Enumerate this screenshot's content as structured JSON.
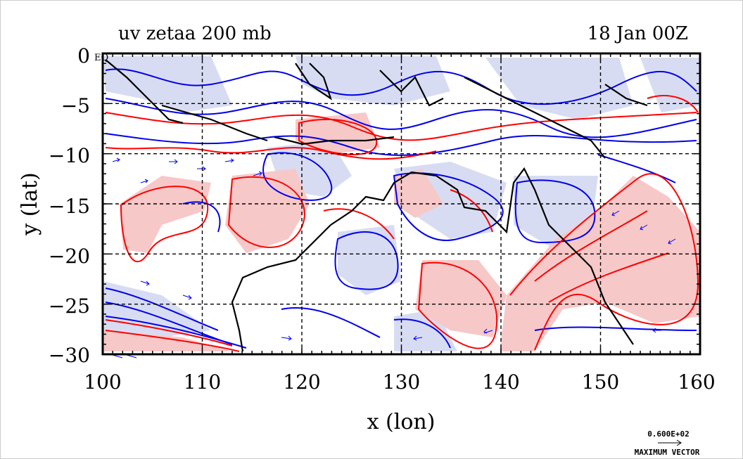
{
  "plot": {
    "title_left": "uv zetaa 200 mb",
    "title_right": "18 Jan 00Z",
    "xlabel": "x (lon)",
    "ylabel": "y (lat)",
    "equator_label": "EQ",
    "x_ticks": [
      "100",
      "110",
      "120",
      "130",
      "140",
      "150",
      "160"
    ],
    "y_ticks": [
      "0",
      "−5",
      "−10",
      "−15",
      "−20",
      "−25",
      "−30"
    ],
    "vector_key_value": "0.600E+02",
    "vector_key_label": "MAXIMUM VECTOR"
  },
  "chart_data": {
    "type": "map",
    "variable": "uv zetaa",
    "level": "200 mb",
    "time": "18 Jan 00Z",
    "xlim": [
      100,
      160
    ],
    "ylim": [
      -30,
      0
    ],
    "grid": true,
    "colors": {
      "positive_contour": "#ff0000",
      "positive_fill": "#f7c8c8",
      "negative_contour": "#0000ee",
      "negative_fill": "#d8dcf2",
      "coastline": "#000000",
      "vectors": "#0000ff"
    }
  }
}
